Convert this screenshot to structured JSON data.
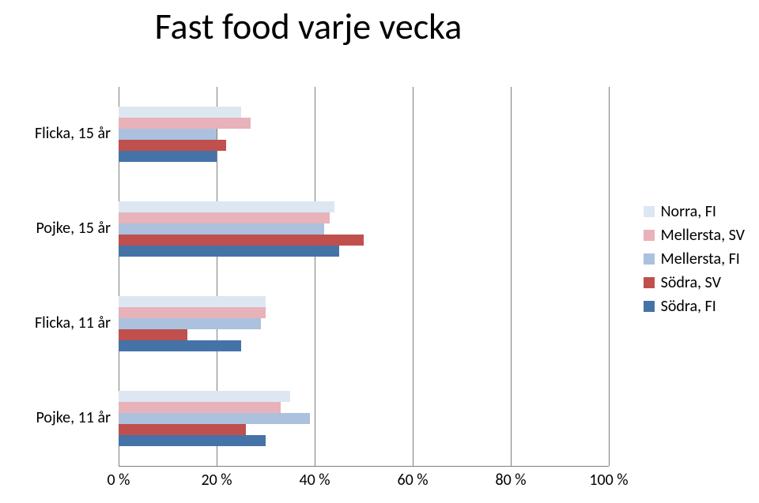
{
  "chart": {
    "type": "bar",
    "title": "Fast food varje vecka",
    "title_fontsize": 46,
    "background_color": "#ffffff",
    "grid_color": "#7f7f7f",
    "xlim": [
      0,
      100
    ],
    "xtick_step": 20,
    "xtick_labels": [
      "0 %",
      "20 %",
      "40 %",
      "60 %",
      "80 %",
      "100 %"
    ],
    "categories": [
      "Flicka, 15 år",
      "Pojke, 15 år",
      "Flicka, 11 år",
      "Pojke, 11 år"
    ],
    "series": [
      {
        "name": "Norra, FI",
        "color": "#dde7f2",
        "values": [
          25,
          44,
          30,
          35
        ]
      },
      {
        "name": "Mellersta, SV",
        "color": "#e7b2b9",
        "values": [
          27,
          43,
          30,
          33
        ]
      },
      {
        "name": "Mellersta, FI",
        "color": "#abc1de",
        "values": [
          20,
          42,
          29,
          39
        ]
      },
      {
        "name": "Södra, SV",
        "color": "#c0504d",
        "values": [
          22,
          50,
          14,
          26
        ]
      },
      {
        "name": "Södra, FI",
        "color": "#4573a7",
        "values": [
          20,
          45,
          25,
          30
        ]
      }
    ],
    "label_fontsize": 20,
    "legend_fontsize": 20
  }
}
